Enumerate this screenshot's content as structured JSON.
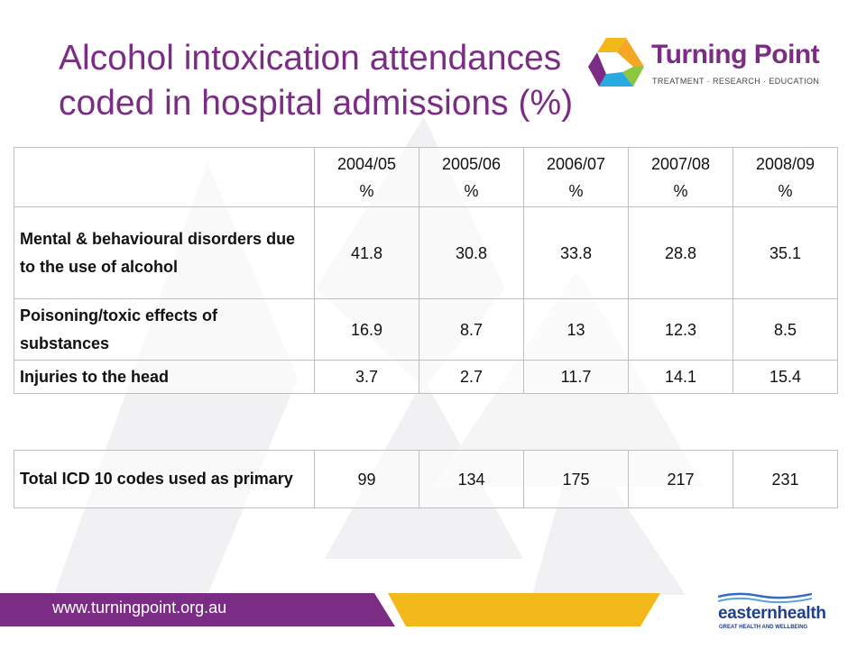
{
  "title": {
    "line1": "Alcohol intoxication attendances",
    "line2": "coded in hospital admissions (%)"
  },
  "logo": {
    "name": "Turning Point",
    "tagline": "TREATMENT · RESEARCH · EDUCATION"
  },
  "table": {
    "columns": [
      {
        "year": "2004/05",
        "unit": "%"
      },
      {
        "year": "2005/06",
        "unit": "%"
      },
      {
        "year": "2006/07",
        "unit": "%"
      },
      {
        "year": "2007/08",
        "unit": "%"
      },
      {
        "year": "2008/09",
        "unit": "%"
      }
    ],
    "rows": [
      {
        "label": "Mental & behavioural disorders due to the use of alcohol",
        "values": [
          "41.8",
          "30.8",
          "33.8",
          "28.8",
          "35.1"
        ]
      },
      {
        "label": "Poisoning/toxic effects of substances",
        "values": [
          "16.9",
          "8.7",
          "13",
          "12.3",
          "8.5"
        ]
      },
      {
        "label": "Injuries to the head",
        "values": [
          "3.7",
          "2.7",
          "11.7",
          "14.1",
          "15.4"
        ]
      }
    ]
  },
  "total": {
    "label": "Total ICD 10 codes used as primary",
    "values": [
      "99",
      "134",
      "175",
      "217",
      "231"
    ]
  },
  "footer": {
    "url": "www.turningpoint.org.au",
    "partner_name": "easternhealth",
    "partner_tagline": "GREAT HEALTH AND WELLBEING"
  },
  "colors": {
    "brand_purple": "#7b2d86",
    "brand_orange": "#f5a623",
    "brand_yellow": "#f3b91a",
    "partner_blue": "#1f3f8a"
  }
}
